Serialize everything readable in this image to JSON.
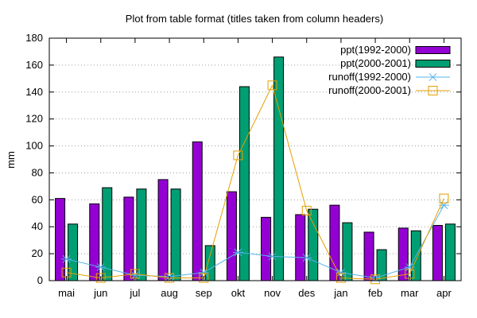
{
  "chart_data": {
    "type": "bar",
    "title": "Plot from table format (titles taken from column headers)",
    "xlabel": "",
    "ylabel": "mm",
    "ylim": [
      0,
      180
    ],
    "yticks": [
      0,
      20,
      40,
      60,
      80,
      100,
      120,
      140,
      160,
      180
    ],
    "grid": true,
    "legend_position": "top-right",
    "categories": [
      "mai",
      "jun",
      "jul",
      "aug",
      "sep",
      "okt",
      "nov",
      "des",
      "jan",
      "feb",
      "mar",
      "apr"
    ],
    "bar_series": [
      {
        "name": "ppt(1992-2000)",
        "color": "#9400d3",
        "values": [
          61,
          57,
          62,
          75,
          103,
          66,
          47,
          49,
          56,
          36,
          39,
          41
        ]
      },
      {
        "name": "ppt(2000-2001)",
        "color": "#009e73",
        "values": [
          42,
          69,
          68,
          68,
          26,
          144,
          166,
          53,
          43,
          23,
          37,
          42
        ]
      }
    ],
    "line_series": [
      {
        "name": "runoff(1992-2000)",
        "color": "#56b4e9",
        "marker": "asterisk",
        "values": [
          16,
          10,
          4,
          3,
          6,
          21,
          18,
          17,
          6,
          2,
          10,
          56
        ]
      },
      {
        "name": "runoff(2000-2001)",
        "color": "#e69f00",
        "marker": "open-square",
        "values": [
          6,
          2,
          5,
          2,
          2,
          93,
          145,
          52,
          2,
          1,
          5,
          61
        ]
      }
    ]
  }
}
